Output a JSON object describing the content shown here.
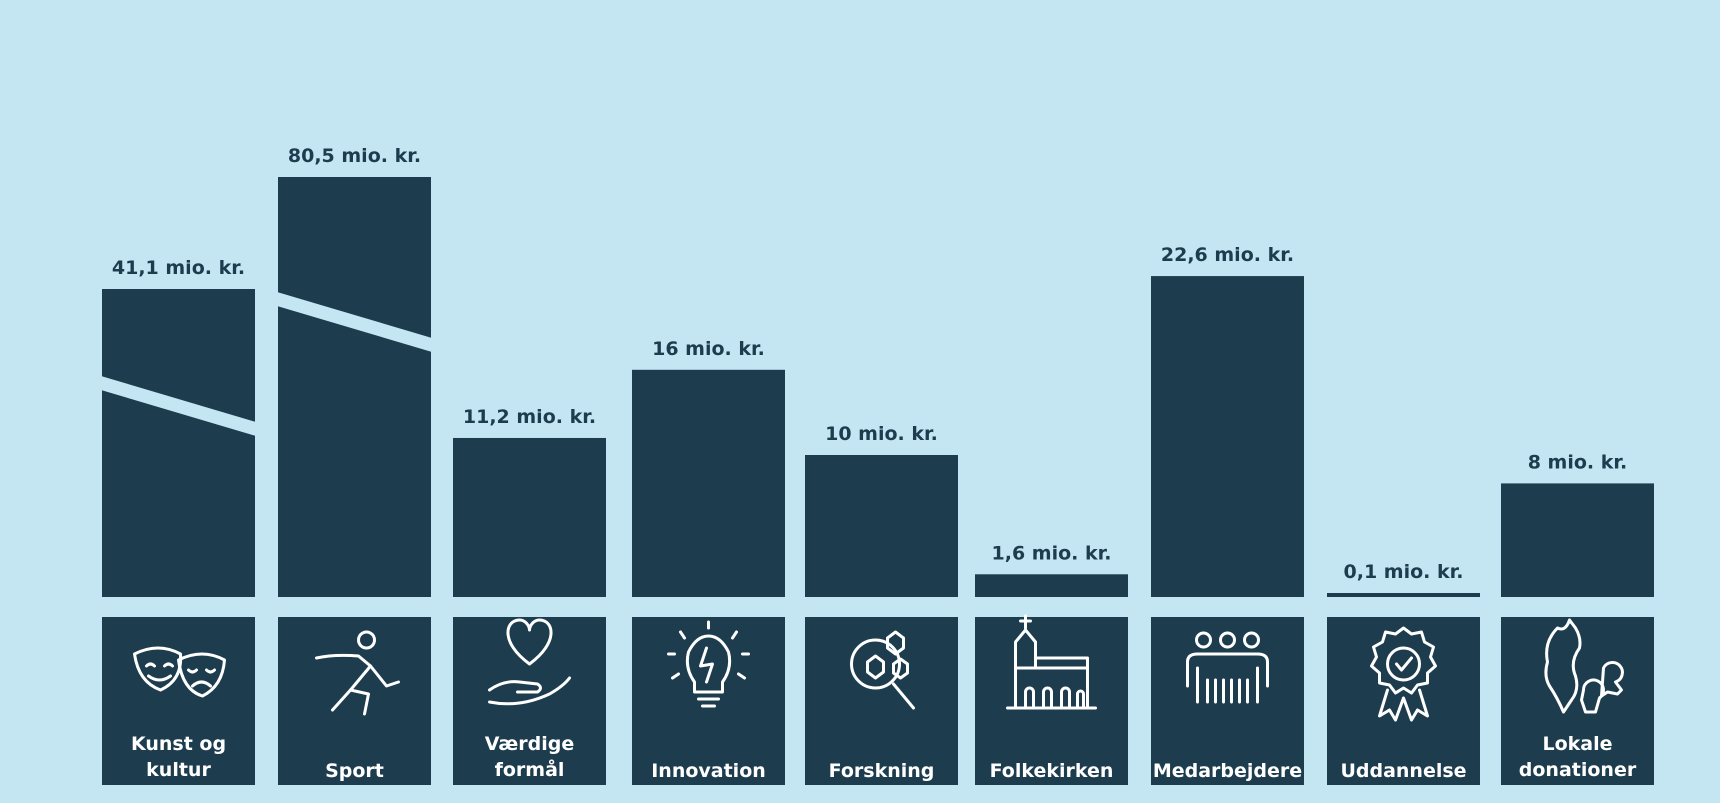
{
  "chart_data": {
    "type": "bar",
    "title": "",
    "xlabel": "",
    "ylabel": "",
    "categories": [
      "Kunst og kultur",
      "Sport",
      "Værdige formål",
      "Innovation",
      "Forskning",
      "Folkekirken",
      "Medarbejdere",
      "Uddannelse",
      "Lokale donationer"
    ],
    "category_lines": [
      [
        "Kunst og",
        "kultur"
      ],
      [
        "Sport"
      ],
      [
        "Værdige",
        "formål"
      ],
      [
        "Innovation"
      ],
      [
        "Forskning"
      ],
      [
        "Folkekirken"
      ],
      [
        "Medarbejdere"
      ],
      [
        "Uddannelse"
      ],
      [
        "Lokale",
        "donationer"
      ]
    ],
    "values": [
      41.1,
      80.5,
      11.2,
      16,
      10,
      1.6,
      22.6,
      0.1,
      8
    ],
    "value_labels": [
      "41,1 mio. kr.",
      "80,5 mio. kr.",
      "11,2 mio. kr.",
      "16 mio. kr.",
      "10 mio. kr.",
      "1,6 mio. kr.",
      "22,6 mio. kr.",
      "0,1 mio. kr.",
      "8 mio. kr."
    ],
    "broken_axis_bars": [
      0,
      1
    ],
    "icons": [
      "theater-masks-icon",
      "running-person-icon",
      "heart-in-hand-icon",
      "lightbulb-icon",
      "magnifier-molecule-icon",
      "church-icon",
      "people-group-icon",
      "award-rosette-icon",
      "map-people-icon"
    ],
    "grid": false,
    "legend": "none"
  },
  "colors": {
    "background": "#c4e6f2",
    "bar": "#1d3d4f",
    "label": "#1d3d4f",
    "icon": "#ffffff"
  }
}
